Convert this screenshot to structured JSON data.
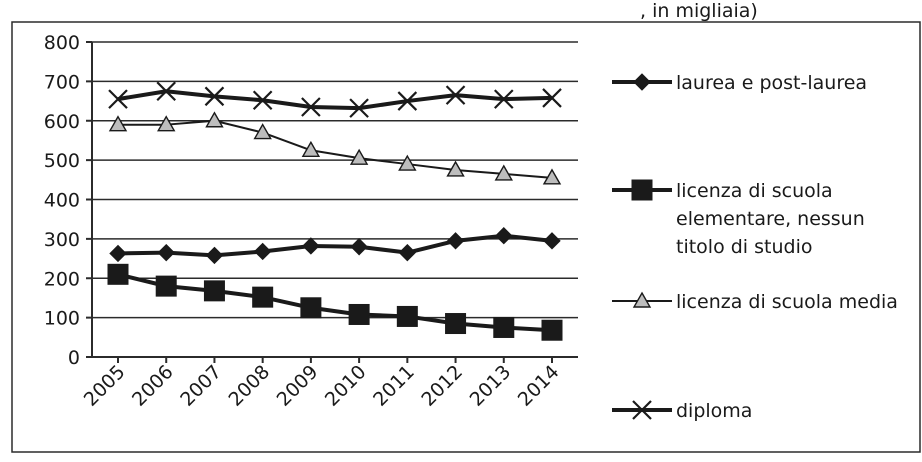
{
  "chart_data": {
    "type": "line",
    "top_caption": ", in migliaia)",
    "categories": [
      "2005",
      "2006",
      "2007",
      "2008",
      "2009",
      "2010",
      "2011",
      "2012",
      "2013",
      "2014"
    ],
    "y_ticks": [
      "0",
      "100",
      "200",
      "300",
      "400",
      "500",
      "600",
      "700",
      "800"
    ],
    "ylim": [
      0,
      800
    ],
    "grid": true,
    "legend_position": "right",
    "series": [
      {
        "name": "laurea e post-laurea",
        "marker": "diamond",
        "values": [
          263,
          265,
          258,
          268,
          282,
          280,
          265,
          295,
          308,
          295
        ]
      },
      {
        "name": "licenza di scuola elementare, nessun titolo di studio",
        "legend_lines": [
          "licenza di scuola",
          "elementare, nessun",
          "titolo di studio"
        ],
        "marker": "square",
        "values": [
          210,
          180,
          168,
          152,
          125,
          108,
          103,
          85,
          75,
          68
        ]
      },
      {
        "name": "licenza di scuola media",
        "marker": "triangle",
        "values": [
          590,
          590,
          600,
          570,
          525,
          505,
          490,
          475,
          465,
          455
        ]
      },
      {
        "name": "diploma",
        "marker": "x",
        "values": [
          655,
          675,
          662,
          652,
          635,
          632,
          650,
          665,
          655,
          658
        ]
      }
    ]
  }
}
